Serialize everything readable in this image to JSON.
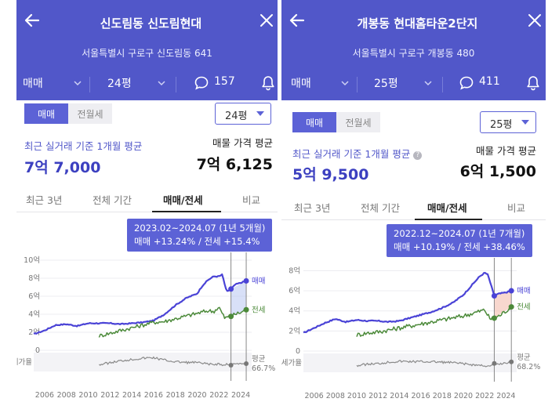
{
  "panels": [
    {
      "title": "신도림동 신도림현대",
      "address": "서울특별시 구로구 신도림동 641",
      "trade_type": "매매",
      "area": "24평",
      "comment_count": "157",
      "small_tabs": [
        "매매",
        "전월세"
      ],
      "area_select": "24평",
      "avg_label": "최근 실거래 기준 1개월 평균",
      "avg_value": "7억 7,000",
      "listing_label": "매물 가격 평균",
      "listing_value": "7억 6,125",
      "nav": [
        "최근 3년",
        "전체 기간",
        "매매/전세",
        "비교"
      ],
      "nav_active": 2,
      "tooltip_period": "2023.02~2024.07 (1년 5개월)",
      "tooltip_change": "매매 +13.24%  /  전세 +15.4%",
      "chart_data": {
        "type": "line",
        "x_range": [
          2005,
          2025
        ],
        "x_ticks": [
          "2006",
          "2008",
          "2010",
          "2012",
          "2014",
          "2016",
          "2018",
          "2020",
          "2022",
          "2024"
        ],
        "y_ticks": [
          "10억",
          "8억",
          "6억",
          "4억",
          "2억",
          "0"
        ],
        "ylim": [
          0,
          10
        ],
        "series": [
          {
            "name": "매매",
            "color": "#4a43d6",
            "x": [
              2005,
              2006,
              2007,
              2008,
              2009,
              2010,
              2011,
              2012,
              2013,
              2014,
              2015,
              2016,
              2017,
              2018,
              2019,
              2020,
              2020.5,
              2021,
              2021.5,
              2022,
              2022.3,
              2022.7,
              2023.1,
              2023.5,
              2024,
              2024.5
            ],
            "y": [
              1.8,
              2.2,
              2.8,
              2.9,
              2.7,
              3.0,
              3.0,
              3.0,
              2.9,
              3.0,
              3.1,
              3.3,
              4.0,
              5.0,
              5.8,
              6.3,
              7.2,
              7.8,
              8.2,
              8.2,
              8.4,
              6.5,
              6.8,
              7.3,
              7.5,
              7.7
            ]
          },
          {
            "name": "전세",
            "color": "#4c8a3a",
            "x": [
              2011,
              2012,
              2013,
              2014,
              2015,
              2016,
              2017,
              2018,
              2019,
              2020,
              2021,
              2021.5,
              2022,
              2022.5,
              2023,
              2023.5,
              2024,
              2024.5
            ],
            "y": [
              1.6,
              1.9,
              2.2,
              2.5,
              2.8,
              3.1,
              3.2,
              3.5,
              3.8,
              4.1,
              4.4,
              4.3,
              4.8,
              3.6,
              3.7,
              4.0,
              4.2,
              4.5
            ]
          }
        ],
        "highlight_range": [
          2023.1,
          2024.5
        ],
        "ratio_label": "전세가율",
        "ratio_avg_label": "평균",
        "ratio_avg_value": "66.7%"
      }
    },
    {
      "title": "개봉동 현대홈타운2단지",
      "address": "서울특별시 구로구 개봉동 480",
      "trade_type": "매매",
      "area": "25평",
      "comment_count": "411",
      "small_tabs": [
        "매매",
        "전월세"
      ],
      "area_select": "25평",
      "avg_label": "최근 실거래 기준 1개월 평균",
      "avg_value": "5억 9,500",
      "listing_label": "매물 가격 평균",
      "listing_value": "6억 1,500",
      "nav": [
        "최근 3년",
        "전체 기간",
        "매매/전세",
        "비교"
      ],
      "nav_active": 2,
      "tooltip_period": "2022.12~2024.07 (1년 7개월)",
      "tooltip_change": "매매 +10.19%  /  전세 +38.46%",
      "chart_data": {
        "type": "line",
        "x_range": [
          2005,
          2025
        ],
        "x_ticks": [
          "2006",
          "2008",
          "2010",
          "2012",
          "2014",
          "2016",
          "2018",
          "2020",
          "2022",
          "2024"
        ],
        "y_ticks": [
          "8억",
          "6억",
          "4억",
          "2억",
          "0"
        ],
        "ylim": [
          0,
          8.5
        ],
        "series": [
          {
            "name": "매매",
            "color": "#4a43d6",
            "x": [
              2005,
              2006,
              2007,
              2008,
              2009,
              2010,
              2011,
              2012,
              2013,
              2014,
              2015,
              2016,
              2017,
              2018,
              2019,
              2020,
              2021,
              2021.5,
              2022,
              2022.3,
              2022.9,
              2023.3,
              2023.8,
              2024.2,
              2024.5
            ],
            "y": [
              1.8,
              2.3,
              2.8,
              3.2,
              2.9,
              3.1,
              3.0,
              3.0,
              2.9,
              3.0,
              3.3,
              3.6,
              3.9,
              4.3,
              4.8,
              5.6,
              6.8,
              7.4,
              7.8,
              7.6,
              5.5,
              5.7,
              5.8,
              5.9,
              6.0
            ]
          },
          {
            "name": "전세",
            "color": "#4c8a3a",
            "x": [
              2010,
              2011,
              2012,
              2013,
              2014,
              2015,
              2016,
              2017,
              2018,
              2019,
              2020,
              2021,
              2022,
              2022.5,
              2023,
              2023.5,
              2024,
              2024.5
            ],
            "y": [
              1.6,
              1.8,
              1.9,
              2.1,
              2.3,
              2.5,
              2.7,
              2.9,
              3.1,
              3.3,
              3.5,
              3.8,
              4.1,
              3.2,
              3.3,
              3.6,
              4.0,
              4.4
            ]
          }
        ],
        "highlight_range": [
          2022.9,
          2024.5
        ],
        "ratio_label": "전세가율",
        "ratio_avg_label": "평균",
        "ratio_avg_value": "68.2%"
      }
    }
  ]
}
